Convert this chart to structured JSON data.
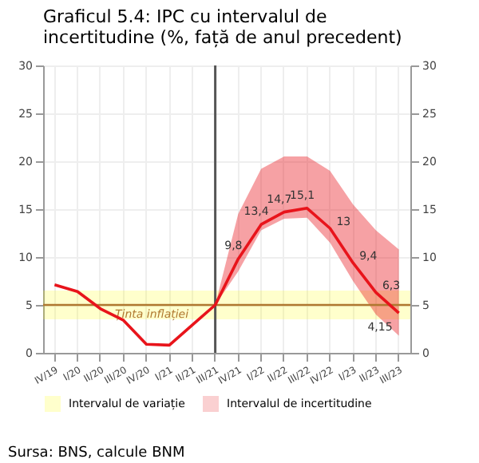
{
  "chart_data": {
    "type": "line",
    "title": "Graficul 5.4:  IPC cu intervalul de\nincertitudine (%, față de anul precedent)",
    "categories": [
      "IV/19",
      "I/20",
      "II/20",
      "III/20",
      "IV/20",
      "I/21",
      "II/21",
      "III/21",
      "IV/21",
      "I/22",
      "II/22",
      "III/22",
      "IV/22",
      "I/23",
      "II/23",
      "III/23"
    ],
    "series": [
      {
        "name": "Intervalul de incertitudine",
        "color": "#e8141b",
        "values": [
          7.1,
          6.4,
          4.6,
          3.4,
          0.9,
          0.8,
          2.9,
          5.0,
          9.8,
          13.4,
          14.7,
          15.1,
          13,
          9.4,
          6.3,
          4.15
        ],
        "lower": [
          null,
          null,
          null,
          null,
          null,
          null,
          null,
          5.0,
          8.5,
          12.8,
          14.0,
          14.1,
          11.5,
          7.5,
          4.0,
          1.8
        ],
        "upper": [
          null,
          null,
          null,
          null,
          null,
          null,
          null,
          5.0,
          14.5,
          19.2,
          20.5,
          20.5,
          19.0,
          15.5,
          12.8,
          10.8
        ],
        "value_labels": [
          null,
          null,
          null,
          null,
          null,
          null,
          null,
          null,
          "9,8",
          "13,4",
          "14,7",
          "15,1",
          "13",
          "9,4",
          "6,3",
          "4,15"
        ]
      }
    ],
    "ylim": [
      0,
      30
    ],
    "yticks": [
      0,
      5,
      10,
      15,
      20,
      25,
      30
    ],
    "y2lim": [
      0,
      30
    ],
    "y2ticks": [
      0,
      5,
      10,
      15,
      20,
      25,
      30
    ],
    "bands": [
      {
        "axis": "y",
        "from": 3.5,
        "to": 6.5,
        "label": "Intervalul de variație",
        "color": "#ffff00"
      }
    ],
    "ref_lines": [
      {
        "axis": "y",
        "value": 5,
        "label": "Ținta inflației",
        "color": "#b07830"
      },
      {
        "axis": "x",
        "value": "III/21",
        "color": "#555555"
      }
    ],
    "annotations": [
      "Sursa: BNS, calcule BNM"
    ],
    "grid": true,
    "legend": "bottom",
    "marker": "none",
    "line_style": "solid"
  }
}
